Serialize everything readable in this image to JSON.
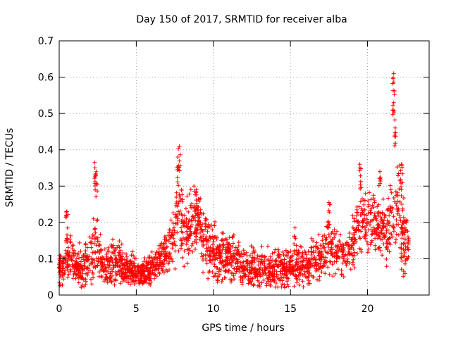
{
  "chart_data": {
    "type": "scatter",
    "title": "Day 150 of 2017, SRMTID for receiver alba",
    "xlabel": "GPS time / hours",
    "ylabel": "SRMTID / TECUs",
    "xlim": [
      0,
      24
    ],
    "ylim": [
      0,
      0.7
    ],
    "xticks": [
      0,
      5,
      10,
      15,
      20
    ],
    "yticks": [
      0,
      0.1,
      0.2,
      0.3,
      0.4,
      0.5,
      0.6,
      0.7
    ],
    "grid": true,
    "marker": "+",
    "color": "#ff0000",
    "envelope": {
      "description": "approximate series profile (hour, typical value, spread)",
      "points": [
        [
          0.0,
          0.07,
          0.03
        ],
        [
          0.3,
          0.08,
          0.04
        ],
        [
          0.6,
          0.12,
          0.06
        ],
        [
          1.0,
          0.08,
          0.04
        ],
        [
          1.5,
          0.07,
          0.04
        ],
        [
          2.0,
          0.1,
          0.05
        ],
        [
          2.4,
          0.15,
          0.08
        ],
        [
          2.8,
          0.08,
          0.04
        ],
        [
          3.5,
          0.09,
          0.04
        ],
        [
          4.0,
          0.08,
          0.04
        ],
        [
          4.5,
          0.07,
          0.03
        ],
        [
          5.0,
          0.06,
          0.03
        ],
        [
          5.5,
          0.06,
          0.03
        ],
        [
          6.0,
          0.07,
          0.03
        ],
        [
          6.5,
          0.09,
          0.04
        ],
        [
          7.0,
          0.12,
          0.05
        ],
        [
          7.5,
          0.18,
          0.07
        ],
        [
          7.8,
          0.22,
          0.08
        ],
        [
          8.2,
          0.17,
          0.06
        ],
        [
          8.7,
          0.2,
          0.07
        ],
        [
          9.0,
          0.22,
          0.06
        ],
        [
          9.5,
          0.14,
          0.06
        ],
        [
          10.0,
          0.12,
          0.05
        ],
        [
          10.5,
          0.11,
          0.05
        ],
        [
          11.0,
          0.1,
          0.05
        ],
        [
          11.5,
          0.09,
          0.04
        ],
        [
          12.0,
          0.08,
          0.04
        ],
        [
          13.0,
          0.07,
          0.04
        ],
        [
          14.0,
          0.07,
          0.04
        ],
        [
          15.0,
          0.08,
          0.04
        ],
        [
          16.0,
          0.08,
          0.04
        ],
        [
          17.0,
          0.1,
          0.04
        ],
        [
          17.5,
          0.15,
          0.06
        ],
        [
          18.0,
          0.12,
          0.05
        ],
        [
          18.5,
          0.1,
          0.04
        ],
        [
          19.0,
          0.13,
          0.05
        ],
        [
          19.5,
          0.22,
          0.07
        ],
        [
          20.0,
          0.2,
          0.06
        ],
        [
          20.5,
          0.2,
          0.06
        ],
        [
          21.0,
          0.18,
          0.06
        ],
        [
          21.5,
          0.2,
          0.07
        ],
        [
          22.0,
          0.25,
          0.1
        ],
        [
          22.3,
          0.17,
          0.07
        ],
        [
          22.7,
          0.12,
          0.04
        ]
      ]
    },
    "peaks": [
      [
        0.5,
        0.23
      ],
      [
        2.3,
        0.365
      ],
      [
        2.4,
        0.34
      ],
      [
        7.8,
        0.41
      ],
      [
        7.7,
        0.38
      ],
      [
        8.9,
        0.29
      ],
      [
        17.5,
        0.255
      ],
      [
        15.3,
        0.185
      ],
      [
        19.5,
        0.36
      ],
      [
        20.8,
        0.34
      ],
      [
        21.7,
        0.53
      ],
      [
        21.7,
        0.61
      ],
      [
        21.8,
        0.46
      ],
      [
        22.2,
        0.36
      ]
    ]
  }
}
